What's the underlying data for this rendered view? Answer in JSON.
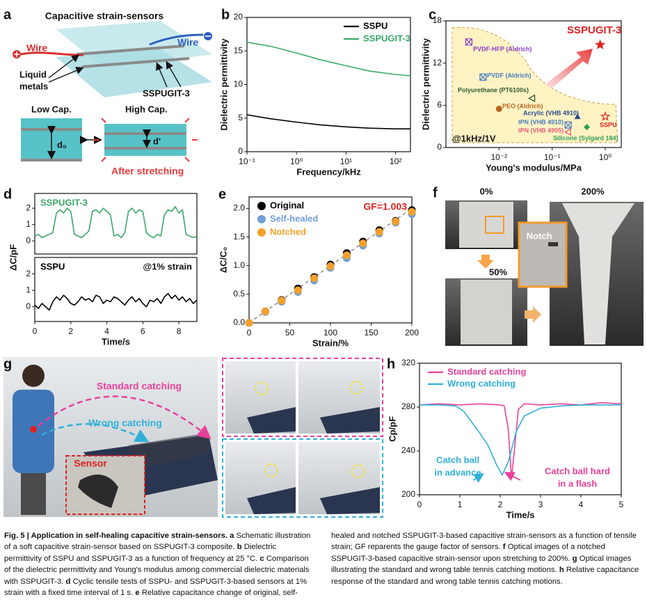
{
  "panel_labels": [
    "a",
    "b",
    "c",
    "d",
    "e",
    "f",
    "g",
    "h"
  ],
  "schematic_a": {
    "title": "Capacitive strain-sensors",
    "wire_left": "Wire",
    "wire_right": "Wire",
    "liquid_metals": [
      "Liquid",
      "metals"
    ],
    "material": "SSPUGIT-3",
    "low_cap": "Low Cap.",
    "high_cap": "High Cap.",
    "d0": "d₀",
    "d_prime": "d'",
    "after": "After stretching"
  },
  "photos_f": {
    "labels": [
      "0%",
      "50%",
      "200%"
    ],
    "notch": "Notch"
  },
  "photos_g": {
    "standard": "Standard catching",
    "wrong": "Wrong catching",
    "sensor": "Sensor"
  },
  "chart_data": [
    {
      "type": "line",
      "xscale": "log",
      "xlabel": "Frequency/kHz",
      "ylabel": "Dielectric permittivity",
      "x": [
        0.1,
        0.3,
        1,
        3,
        10,
        30,
        100,
        200
      ],
      "xlim": [
        0.1,
        200
      ],
      "ylim": [
        0,
        20
      ],
      "xticks": [
        {
          "value": 0.1,
          "label": "10⁻¹"
        },
        {
          "value": 1,
          "label": "10⁰"
        },
        {
          "value": 10,
          "label": "10¹"
        },
        {
          "value": 100,
          "label": "10²"
        }
      ],
      "yticks": [
        0,
        5,
        10,
        15,
        20
      ],
      "legend": "upper right",
      "series": [
        {
          "name": "SSPU",
          "color": "#000000",
          "values": [
            5.5,
            4.9,
            4.4,
            4.0,
            3.7,
            3.5,
            3.4,
            3.4
          ]
        },
        {
          "name": "SSPUGIT-3",
          "color": "#3aa868",
          "values": [
            16.3,
            15.7,
            14.7,
            13.7,
            12.8,
            12.0,
            11.5,
            11.3
          ]
        }
      ]
    },
    {
      "type": "scatter",
      "xscale": "log",
      "xlabel": "Young's modulus/MPa",
      "ylabel": "Dielectric permittivity",
      "xlim": [
        0.001,
        2
      ],
      "ylim": [
        0,
        18
      ],
      "xticks": [
        {
          "value": 0.01,
          "label": "10⁻²"
        },
        {
          "value": 0.1,
          "label": "10⁻¹"
        },
        {
          "value": 1,
          "label": "10⁰"
        }
      ],
      "yticks": [
        0,
        6,
        12,
        18
      ],
      "annotations": [
        "@1kHz/1V"
      ],
      "series": [
        {
          "name": "PVDF-HFP (Aldrich)",
          "color": "#8a3cc8",
          "marker": "square-x",
          "x": [
            0.0027
          ],
          "values": [
            15
          ]
        },
        {
          "name": "PVDF (Aldrich)",
          "color": "#4a7cc0",
          "marker": "square-x",
          "x": [
            0.005
          ],
          "values": [
            10
          ]
        },
        {
          "name": "Polyurethane (PT6100s)",
          "color": "#2f5a2f",
          "marker": "triangle-left",
          "x": [
            0.042
          ],
          "values": [
            7
          ]
        },
        {
          "name": "PEO (Aldrich)",
          "color": "#b8641e",
          "marker": "circle",
          "x": [
            0.01
          ],
          "values": [
            5.5
          ]
        },
        {
          "name": "Acrylic (VHB 4910)",
          "color": "#2a4a8c",
          "marker": "triangle",
          "x": [
            0.3
          ],
          "values": [
            4.4
          ]
        },
        {
          "name": "IPN (VHB 4910)",
          "color": "#4a7cc0",
          "marker": "square-x",
          "x": [
            0.2
          ],
          "values": [
            3.2
          ]
        },
        {
          "name": "IPN (VHB 4905)",
          "color": "#e0607a",
          "marker": "triangle-left",
          "x": [
            0.2
          ],
          "values": [
            2.2
          ]
        },
        {
          "name": "Silicone (Sylgard 184)",
          "color": "#2e9e55",
          "marker": "diamond",
          "x": [
            0.45
          ],
          "values": [
            2.9
          ]
        },
        {
          "name": "SSPU",
          "color": "#e02020",
          "marker": "star-open",
          "x": [
            1.0
          ],
          "values": [
            4.4
          ]
        },
        {
          "name": "SSPUGIT-3",
          "color": "#e02020",
          "marker": "star",
          "x": [
            0.8
          ],
          "values": [
            14.6
          ]
        }
      ]
    },
    {
      "type": "line",
      "ylabel": "ΔC/pF",
      "x": [
        0,
        0.2,
        0.4,
        0.6,
        0.8,
        1,
        1.2,
        1.4,
        1.6,
        1.8,
        2,
        2.2,
        2.4,
        2.6,
        2.8,
        3,
        3.2,
        3.4,
        3.6,
        3.8,
        4,
        4.2,
        4.4,
        4.6,
        4.8,
        5,
        5.2,
        5.4,
        5.6,
        5.8,
        6,
        6.2,
        6.4,
        6.6,
        6.8,
        7,
        7.2,
        7.4,
        7.6,
        7.8,
        8,
        8.2,
        8.4,
        8.6,
        8.8,
        9
      ],
      "xlim": [
        0,
        9
      ],
      "ylim": [
        -0.8,
        2.9
      ],
      "yticks": [
        0,
        1,
        2
      ],
      "series": [
        {
          "name": "SSPUGIT-3",
          "color": "#3aa868",
          "values": [
            0.3,
            0.4,
            0.2,
            0.3,
            0.4,
            0.5,
            1.7,
            1.9,
            1.7,
            2.0,
            1.8,
            0.4,
            0.3,
            0.2,
            0.4,
            0.6,
            1.8,
            1.9,
            1.7,
            2.0,
            1.8,
            1.6,
            0.3,
            0.4,
            0.2,
            0.5,
            1.8,
            2.0,
            1.7,
            1.9,
            1.8,
            0.5,
            0.3,
            0.2,
            0.4,
            0.3,
            1.6,
            1.9,
            1.8,
            2.1,
            1.7,
            1.9,
            0.4,
            0.3,
            0.2,
            0.3
          ]
        }
      ]
    },
    {
      "type": "line",
      "xlabel": "Time/s",
      "x": [
        0,
        0.2,
        0.4,
        0.6,
        0.8,
        1,
        1.2,
        1.4,
        1.6,
        1.8,
        2,
        2.2,
        2.4,
        2.6,
        2.8,
        3,
        3.2,
        3.4,
        3.6,
        3.8,
        4,
        4.2,
        4.4,
        4.6,
        4.8,
        5,
        5.2,
        5.4,
        5.6,
        5.8,
        6,
        6.2,
        6.4,
        6.6,
        6.8,
        7,
        7.2,
        7.4,
        7.6,
        7.8,
        8,
        8.2,
        8.4,
        8.6,
        8.8,
        9
      ],
      "xlim": [
        0,
        9
      ],
      "ylim": [
        -0.9,
        3.0
      ],
      "xticks": [
        0,
        2,
        4,
        6,
        8
      ],
      "yticks": [
        0,
        1,
        2
      ],
      "annotations": [
        "@1% strain"
      ],
      "series": [
        {
          "name": "SSPU",
          "color": "#000000",
          "values": [
            0.1,
            -0.1,
            0.2,
            0.0,
            -0.2,
            0.3,
            0.6,
            0.4,
            0.7,
            0.5,
            0.2,
            0.1,
            0.3,
            0.6,
            0.4,
            0.5,
            0.3,
            0.7,
            0.6,
            0.2,
            0.4,
            0.3,
            0.6,
            0.5,
            0.3,
            0.1,
            0.4,
            0.6,
            0.3,
            0.5,
            0.2,
            0.0,
            0.4,
            0.3,
            0.5,
            0.2,
            0.6,
            0.8,
            0.5,
            0.7,
            0.4,
            0.6,
            0.3,
            0.5,
            0.2,
            0.4
          ]
        }
      ]
    },
    {
      "type": "scatter",
      "xlabel": "Strain/%",
      "ylabel": "ΔC/C₀",
      "x": [
        0,
        20,
        40,
        60,
        80,
        100,
        120,
        140,
        160,
        180,
        200
      ],
      "xlim": [
        0,
        200
      ],
      "ylim": [
        0,
        2.2
      ],
      "xticks": [
        0,
        50,
        100,
        150,
        200
      ],
      "yticks": [
        {
          "value": 0,
          "label": "0.0"
        },
        0.5,
        {
          "value": 1,
          "label": "1.0"
        },
        1.5,
        {
          "value": 2,
          "label": "2.0"
        }
      ],
      "legend": "upper left",
      "annotations": [
        "GF=1.003"
      ],
      "fit": {
        "x": [
          0,
          200
        ],
        "values": [
          0,
          2
        ]
      },
      "series": [
        {
          "name": "Original",
          "color": "#000000",
          "values": [
            0,
            0.2,
            0.4,
            0.6,
            0.8,
            1.02,
            1.22,
            1.42,
            1.62,
            1.78,
            1.97
          ]
        },
        {
          "name": "Self-healed",
          "color": "#6f9fd6",
          "values": [
            0,
            0.19,
            0.37,
            0.54,
            0.74,
            0.96,
            1.13,
            1.35,
            1.56,
            1.75,
            1.9
          ]
        },
        {
          "name": "Notched",
          "color": "#f5a02a",
          "values": [
            0,
            0.2,
            0.39,
            0.57,
            0.78,
            0.99,
            1.18,
            1.39,
            1.59,
            1.77,
            1.94
          ]
        }
      ]
    },
    {
      "type": "line",
      "xlabel": "Time/s",
      "ylabel": "Cp/pF",
      "xlim": [
        0,
        5
      ],
      "ylim": [
        200,
        320
      ],
      "xticks": [
        0,
        1,
        2,
        3,
        4,
        5
      ],
      "yticks": [
        200,
        240,
        280,
        320
      ],
      "legend": "upper left",
      "annotations": [
        [
          "Catch ball",
          "in advance"
        ],
        [
          "Catch ball hard",
          "in a flash"
        ]
      ],
      "series": [
        {
          "name": "Standard catching",
          "color": "#e8409a",
          "x": [
            0,
            0.5,
            1,
            1.5,
            2,
            2.1,
            2.2,
            2.28,
            2.35,
            2.45,
            2.6,
            3,
            3.5,
            4,
            4.5,
            5
          ],
          "values": [
            282,
            283,
            282,
            283,
            282,
            281,
            260,
            215,
            240,
            278,
            283,
            282,
            283,
            282,
            284,
            283
          ]
        },
        {
          "name": "Wrong catching",
          "color": "#2fb0d8",
          "x": [
            0,
            0.5,
            0.9,
            1.1,
            1.3,
            1.5,
            1.7,
            1.9,
            2.05,
            2.2,
            2.4,
            2.6,
            3,
            3.5,
            4,
            4.5,
            5
          ],
          "values": [
            282,
            282,
            281,
            276,
            266,
            256,
            245,
            228,
            218,
            230,
            258,
            272,
            279,
            281,
            282,
            282,
            282
          ]
        }
      ]
    }
  ],
  "caption": {
    "title": "Fig. 5 | Application in self-healing capacitive strain-sensors.",
    "parts": [
      {
        "label": "a",
        "text": "Schematic illustration of a soft capacitive strain-sensor based on SSPUGIT-3 composite."
      },
      {
        "label": "b",
        "text": "Dielectric permittivity of SSPU and SSPUGIT-3 as a function of frequency at 25 °C."
      },
      {
        "label": "c",
        "text": "Comparison of the dielectric permittivity and Young's modulus among commercial dielectric materials with SSPUGIT-3."
      },
      {
        "label": "d",
        "text": "Cyclic tensile tests of SSPU- and SSPUGIT-3-based sensors at 1% strain with a fixed time interval of 1 s."
      },
      {
        "label": "e",
        "text": "Relative capacitance change of original, self-healed and notched SSPUGIT-3-based capacitive strain-sensors as a function of tensile strain; GF reparents the gauge factor of sensors."
      },
      {
        "label": "f",
        "text": "Optical images of a notched SSPUGIT-3-based capacitive strain-sensor upon stretching to 200%."
      },
      {
        "label": "g",
        "text": "Optical images illustrating the standard and wrong table tennis catching motions."
      },
      {
        "label": "h",
        "text": "Relative capacitance response of the standard and wrong table tennis catching motions."
      }
    ]
  }
}
